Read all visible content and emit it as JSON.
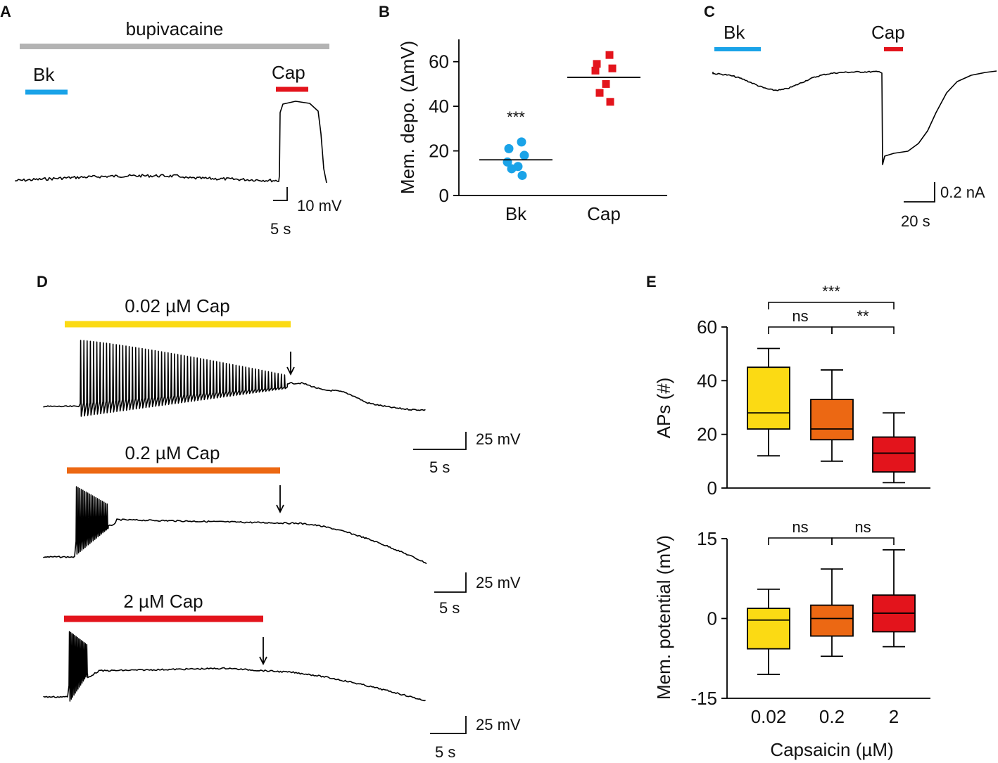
{
  "colors": {
    "bk": "#1aa3e8",
    "cap": "#e3141c",
    "bupivacaine": "#b3b3b3",
    "c002": "#fbda14",
    "c02": "#ec6813",
    "c2": "#e3141c"
  },
  "panels": {
    "a": "A",
    "b": "B",
    "c": "C",
    "d": "D",
    "e": "E"
  },
  "panelA": {
    "bupivacaine_label": "bupivacaine",
    "bk_label": "Bk",
    "cap_label": "Cap",
    "scale_y": "10 mV",
    "scale_x": "5 s"
  },
  "panelC": {
    "bk_label": "Bk",
    "cap_label": "Cap",
    "scale_y": "0.2 nA",
    "scale_x": "20 s"
  },
  "panelD": {
    "traces": [
      {
        "label": "0.02 µM Cap",
        "scale_y": "25 mV",
        "scale_x": "5 s"
      },
      {
        "label": "0.2 µM Cap",
        "scale_y": "25 mV",
        "scale_x": "5 s"
      },
      {
        "label": "2 µM Cap",
        "scale_y": "25 mV",
        "scale_x": "5 s"
      }
    ]
  },
  "chart_data": [
    {
      "type": "scatter",
      "panel": "B",
      "title": "",
      "ylabel": "Mem. depo. (ΔmV)",
      "ylim": [
        0,
        70
      ],
      "yticks": [
        0,
        20,
        40,
        60
      ],
      "categories": [
        "Bk",
        "Cap"
      ],
      "series": [
        {
          "name": "Bk",
          "values": [
            24,
            21,
            18,
            15,
            13,
            12,
            9
          ],
          "mean": 16,
          "significance": "***"
        },
        {
          "name": "Cap",
          "values": [
            63,
            59,
            57,
            56,
            50,
            46,
            42
          ],
          "mean": 53
        }
      ]
    },
    {
      "type": "box",
      "panel": "E-top",
      "ylabel": "APs (#)",
      "ylim": [
        0,
        60
      ],
      "yticks": [
        0,
        20,
        40,
        60
      ],
      "categories": [
        "0.02",
        "0.2",
        "2"
      ],
      "boxes": [
        {
          "name": "0.02",
          "min": 12,
          "q1": 22,
          "median": 28,
          "q3": 45,
          "max": 52
        },
        {
          "name": "0.2",
          "min": 10,
          "q1": 18,
          "median": 22,
          "q3": 33,
          "max": 44
        },
        {
          "name": "2",
          "min": 2,
          "q1": 6,
          "median": 13,
          "q3": 19,
          "max": 28
        }
      ],
      "comparisons": [
        {
          "pair": [
            "0.02",
            "2"
          ],
          "label": "***"
        },
        {
          "pair": [
            "0.02",
            "0.2"
          ],
          "label": "ns"
        },
        {
          "pair": [
            "0.2",
            "2"
          ],
          "label": "**"
        }
      ]
    },
    {
      "type": "box",
      "panel": "E-bottom",
      "ylabel": "Mem. potential (mV)",
      "xlabel": "Capsaicin (µM)",
      "ylim": [
        -15,
        15
      ],
      "yticks": [
        -15,
        0,
        15
      ],
      "categories": [
        "0.02",
        "0.2",
        "2"
      ],
      "boxes": [
        {
          "name": "0.02",
          "min": -10.5,
          "q1": -5.7,
          "median": -0.3,
          "q3": 1.9,
          "max": 5.5
        },
        {
          "name": "0.2",
          "min": -7.1,
          "q1": -3.3,
          "median": 0,
          "q3": 2.5,
          "max": 9.3
        },
        {
          "name": "2",
          "min": -5.3,
          "q1": -2.5,
          "median": 1,
          "q3": 4.4,
          "max": 12.9
        }
      ],
      "comparisons": [
        {
          "pair": [
            "0.02",
            "0.2"
          ],
          "label": "ns"
        },
        {
          "pair": [
            "0.2",
            "2"
          ],
          "label": "ns"
        }
      ]
    }
  ]
}
